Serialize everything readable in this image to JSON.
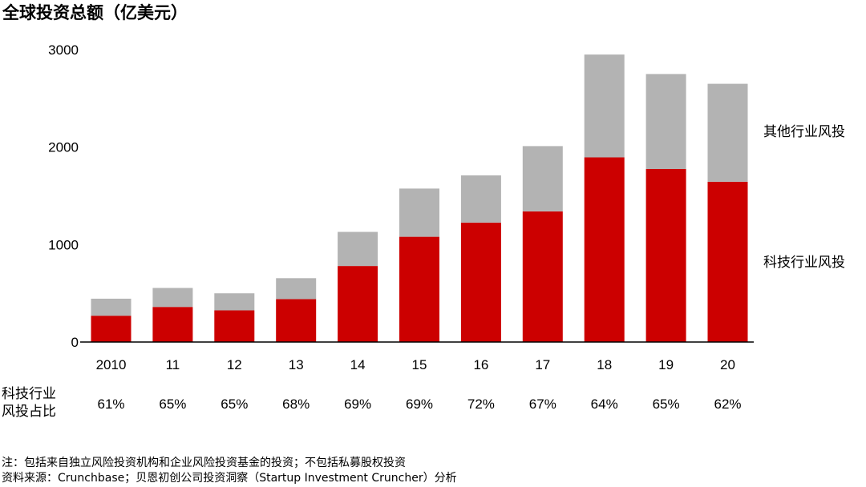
{
  "title": "全球投资总额（亿美元）",
  "row_label": [
    "科技行业",
    "风投占比"
  ],
  "notes": [
    "注：包括来自独立风险投资机构和企业风险投资基金的投资；不包括私募股权投资",
    "资料来源：Crunchbase；贝恩初创公司投资洞察（Startup Investment Cruncher）分析"
  ],
  "colors": {
    "tech": "#cc0000",
    "other": "#b3b3b3",
    "axis": "#000000"
  },
  "chart_data": {
    "type": "bar",
    "stacked": true,
    "categories": [
      "2010",
      "11",
      "12",
      "13",
      "14",
      "15",
      "16",
      "17",
      "18",
      "19",
      "20"
    ],
    "series": [
      {
        "name": "科技行业风投",
        "values": [
          270,
          360,
          325,
          440,
          780,
          1080,
          1225,
          1340,
          1895,
          1775,
          1645
        ]
      },
      {
        "name": "其他行业风投",
        "values": [
          175,
          195,
          175,
          215,
          350,
          495,
          485,
          670,
          1055,
          975,
          1005
        ]
      }
    ],
    "yticks": [
      0,
      1000,
      2000,
      3000
    ],
    "ylim": [
      0,
      3000
    ],
    "tech_share": [
      "61%",
      "65%",
      "65%",
      "68%",
      "69%",
      "69%",
      "72%",
      "67%",
      "64%",
      "65%",
      "62%"
    ],
    "grid": false,
    "legend_placement": "right"
  }
}
